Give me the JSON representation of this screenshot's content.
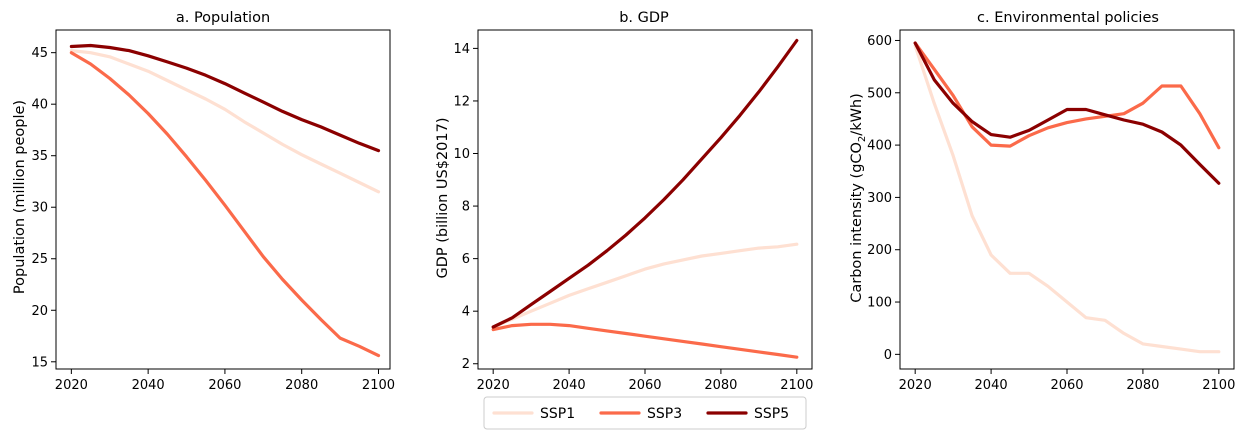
{
  "chart_data": [
    {
      "type": "line",
      "title": "a. Population",
      "xlabel": "",
      "ylabel": "Population (million people)",
      "xlim": [
        2016,
        2103
      ],
      "ylim": [
        14.3,
        47.2
      ],
      "xticks": [
        2020,
        2040,
        2060,
        2080,
        2100
      ],
      "yticks": [
        15,
        20,
        25,
        30,
        35,
        40,
        45
      ],
      "grid": false,
      "series": [
        {
          "name": "SSP1",
          "color": "#fee0d2",
          "x": [
            2020,
            2025,
            2030,
            2035,
            2040,
            2045,
            2050,
            2055,
            2060,
            2065,
            2070,
            2075,
            2080,
            2085,
            2090,
            2095,
            2100
          ],
          "y": [
            45.2,
            45.0,
            44.6,
            43.9,
            43.2,
            42.3,
            41.4,
            40.5,
            39.5,
            38.3,
            37.2,
            36.1,
            35.1,
            34.2,
            33.3,
            32.4,
            31.5
          ]
        },
        {
          "name": "SSP3",
          "color": "#fb6a4a",
          "x": [
            2020,
            2025,
            2030,
            2035,
            2040,
            2045,
            2050,
            2055,
            2060,
            2065,
            2070,
            2075,
            2080,
            2085,
            2090,
            2095,
            2100
          ],
          "y": [
            45.0,
            43.9,
            42.5,
            40.9,
            39.1,
            37.1,
            34.9,
            32.6,
            30.2,
            27.7,
            25.2,
            23.0,
            21.0,
            19.1,
            17.3,
            16.5,
            15.6
          ]
        },
        {
          "name": "SSP5",
          "color": "#8b0000",
          "x": [
            2020,
            2025,
            2030,
            2035,
            2040,
            2045,
            2050,
            2055,
            2060,
            2065,
            2070,
            2075,
            2080,
            2085,
            2090,
            2095,
            2100
          ],
          "y": [
            45.6,
            45.7,
            45.5,
            45.2,
            44.7,
            44.1,
            43.5,
            42.8,
            42.0,
            41.1,
            40.2,
            39.3,
            38.5,
            37.8,
            37.0,
            36.2,
            35.5
          ]
        }
      ]
    },
    {
      "type": "line",
      "title": "b. GDP",
      "xlabel": "",
      "ylabel": "GDP (billion US$2017)",
      "xlim": [
        2016,
        2104
      ],
      "ylim": [
        1.8,
        14.7
      ],
      "xticks": [
        2020,
        2040,
        2060,
        2080,
        2100
      ],
      "yticks": [
        2,
        4,
        6,
        8,
        10,
        12,
        14
      ],
      "grid": false,
      "series": [
        {
          "name": "SSP1",
          "color": "#fee0d2",
          "x": [
            2020,
            2025,
            2030,
            2035,
            2040,
            2045,
            2050,
            2055,
            2060,
            2065,
            2070,
            2075,
            2080,
            2085,
            2090,
            2095,
            2100
          ],
          "y": [
            3.4,
            3.7,
            4.0,
            4.3,
            4.6,
            4.85,
            5.1,
            5.35,
            5.6,
            5.8,
            5.95,
            6.1,
            6.2,
            6.3,
            6.4,
            6.45,
            6.55
          ]
        },
        {
          "name": "SSP3",
          "color": "#fb6a4a",
          "x": [
            2020,
            2025,
            2030,
            2035,
            2040,
            2045,
            2050,
            2055,
            2060,
            2065,
            2070,
            2075,
            2080,
            2085,
            2090,
            2095,
            2100
          ],
          "y": [
            3.3,
            3.45,
            3.5,
            3.5,
            3.45,
            3.35,
            3.25,
            3.15,
            3.05,
            2.95,
            2.85,
            2.75,
            2.65,
            2.55,
            2.45,
            2.35,
            2.25
          ]
        },
        {
          "name": "SSP5",
          "color": "#8b0000",
          "x": [
            2020,
            2025,
            2030,
            2035,
            2040,
            2045,
            2050,
            2055,
            2060,
            2065,
            2070,
            2075,
            2080,
            2085,
            2090,
            2095,
            2100
          ],
          "y": [
            3.4,
            3.75,
            4.25,
            4.75,
            5.25,
            5.75,
            6.3,
            6.9,
            7.55,
            8.25,
            9.0,
            9.8,
            10.6,
            11.45,
            12.35,
            13.3,
            14.3
          ]
        }
      ]
    },
    {
      "type": "line",
      "title": "c. Environmental policies",
      "xlabel": "",
      "ylabel_main": "Carbon intensity (gCO",
      "ylabel_sub": "2",
      "ylabel_tail": "/kWh)",
      "xlim": [
        2016,
        2104
      ],
      "ylim": [
        -28,
        620
      ],
      "xticks": [
        2020,
        2040,
        2060,
        2080,
        2100
      ],
      "yticks": [
        0,
        100,
        200,
        300,
        400,
        500,
        600
      ],
      "grid": false,
      "series": [
        {
          "name": "SSP1",
          "color": "#fee0d2",
          "x": [
            2020,
            2025,
            2030,
            2035,
            2040,
            2045,
            2050,
            2055,
            2060,
            2065,
            2070,
            2075,
            2080,
            2085,
            2090,
            2095,
            2100
          ],
          "y": [
            590,
            480,
            380,
            265,
            190,
            155,
            155,
            130,
            100,
            70,
            65,
            40,
            20,
            15,
            10,
            5,
            5
          ]
        },
        {
          "name": "SSP3",
          "color": "#fb6a4a",
          "x": [
            2020,
            2025,
            2030,
            2035,
            2040,
            2045,
            2050,
            2055,
            2060,
            2065,
            2070,
            2075,
            2080,
            2085,
            2090,
            2095,
            2100
          ],
          "y": [
            595,
            545,
            495,
            435,
            400,
            398,
            418,
            433,
            443,
            450,
            455,
            460,
            480,
            513,
            513,
            460,
            395
          ]
        },
        {
          "name": "SSP5",
          "color": "#8b0000",
          "x": [
            2020,
            2025,
            2030,
            2035,
            2040,
            2045,
            2050,
            2055,
            2060,
            2065,
            2070,
            2075,
            2080,
            2085,
            2090,
            2095,
            2100
          ],
          "y": [
            595,
            525,
            480,
            445,
            420,
            415,
            428,
            448,
            468,
            468,
            458,
            448,
            440,
            425,
            400,
            363,
            327
          ]
        }
      ]
    }
  ],
  "legend": {
    "placement": "bottom-center",
    "items": [
      {
        "label": "SSP1",
        "color": "#fee0d2"
      },
      {
        "label": "SSP3",
        "color": "#fb6a4a"
      },
      {
        "label": "SSP5",
        "color": "#8b0000"
      }
    ]
  }
}
